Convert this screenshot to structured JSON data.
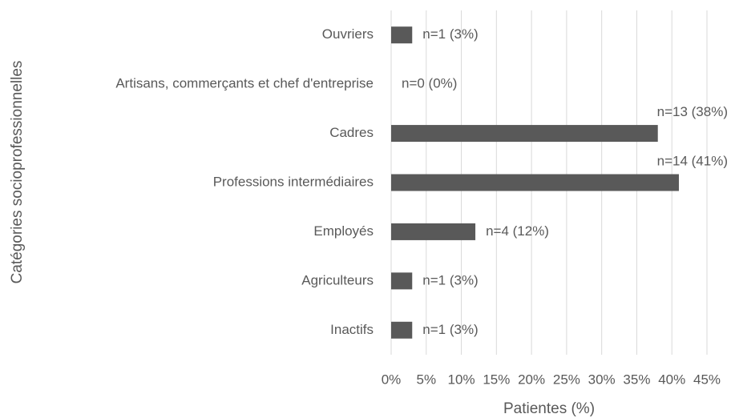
{
  "chart_data": {
    "type": "hbar",
    "categories": [
      "Ouvriers",
      "Artisans, commerçants et chef d'entreprise",
      "Cadres",
      "Professions intermédiaires",
      "Employés",
      "Agriculteurs",
      "Inactifs"
    ],
    "values": [
      3,
      0,
      38,
      41,
      12,
      3,
      3
    ],
    "value_labels": [
      "n=1 (3%)",
      "n=0 (0%)",
      "n=13 (38%)",
      "n=14 (41%)",
      "n=4 (12%)",
      "n=1 (3%)",
      "n=1 (3%)"
    ],
    "color": "#595959",
    "xlim": [
      0,
      45
    ],
    "xticks": [
      {
        "value": 0,
        "label": "0%"
      },
      {
        "value": 5,
        "label": "5%"
      },
      {
        "value": 10,
        "label": "10%"
      },
      {
        "value": 15,
        "label": "15%"
      },
      {
        "value": 20,
        "label": "20%"
      },
      {
        "value": 25,
        "label": "25%"
      },
      {
        "value": 30,
        "label": "30%"
      },
      {
        "value": 35,
        "label": "35%"
      },
      {
        "value": 40,
        "label": "40%"
      },
      {
        "value": 45,
        "label": "45%"
      }
    ],
    "grid": true,
    "x_label": "Patientes (%)",
    "y_label": "Catégories socioprofessionnelles"
  }
}
